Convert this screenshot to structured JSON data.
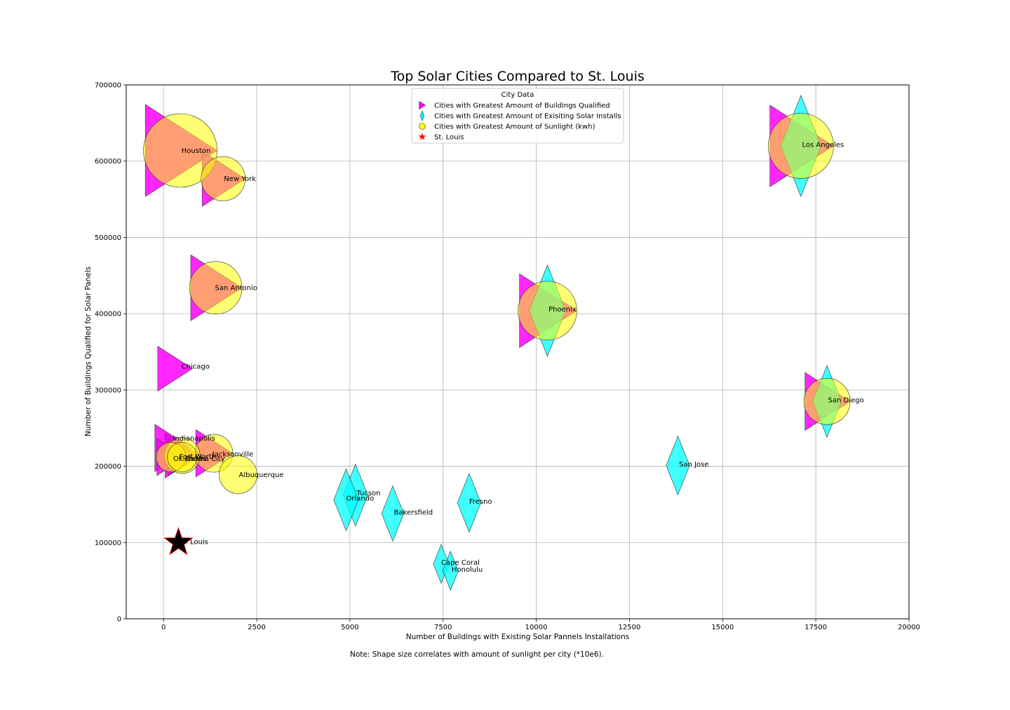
{
  "chart_data": {
    "type": "scatter",
    "title": "Top Solar Cities Compared to St. Louis",
    "xlabel": "Number of Buildings with Existing Solar Pannels Installations",
    "ylabel": "Number of Buildings Qualified for Solar Panels",
    "note": "Note: Shape size correlates with amount of sunlight per city (*10e6).",
    "xlim": [
      -1000,
      20000
    ],
    "ylim": [
      0,
      700000
    ],
    "xticks": [
      0,
      2500,
      5000,
      7500,
      10000,
      12500,
      15000,
      17500,
      20000
    ],
    "yticks": [
      0,
      100000,
      200000,
      300000,
      400000,
      500000,
      600000,
      700000
    ],
    "grid": true,
    "legend": {
      "title": "City Data",
      "placement": "upper-center",
      "entries": [
        {
          "label": "Cities with Greatest Amount of Buildings Qualified",
          "marker": "triangle-right",
          "color": "#ff00ff"
        },
        {
          "label": "Cities with Greatest Amount of Exisiting Solar Installs",
          "marker": "diamond",
          "color": "#00ffff"
        },
        {
          "label": "Cities with Greatest Amount of Sunlight (kwh)",
          "marker": "circle",
          "color": "#ffff00"
        },
        {
          "label": "St. Louis",
          "marker": "star",
          "color": "#cc0000"
        }
      ]
    },
    "colors": {
      "qualified": "#ff00ff",
      "installs": "#00ffff",
      "sunlight": "#ffff00",
      "stlouis_fill": "#000000",
      "stlouis_edge": "#ff0000"
    },
    "series": [
      {
        "name": "Cities with Greatest Amount of Buildings Qualified",
        "marker": "triangle-right",
        "points": [
          {
            "city": "Houston",
            "x": 450,
            "y": 614000,
            "size": 3.5
          },
          {
            "city": "New York",
            "x": 1600,
            "y": 577000,
            "size": 2.1
          },
          {
            "city": "San Antonio",
            "x": 1400,
            "y": 434000,
            "size": 2.5
          },
          {
            "city": "Chicago",
            "x": 300,
            "y": 328000,
            "size": 1.7
          },
          {
            "city": "Indianapolis",
            "x": 250,
            "y": 224000,
            "size": 1.8
          },
          {
            "city": "Fort Worth",
            "x": 500,
            "y": 214000,
            "size": 1.7
          },
          {
            "city": "Jacksonville",
            "x": 1350,
            "y": 217000,
            "size": 1.8
          },
          {
            "city": "Oklahoma City",
            "x": 200,
            "y": 212000,
            "size": 1.4
          },
          {
            "city": "Dallas",
            "x": 500,
            "y": 212000,
            "size": 1.4
          },
          {
            "city": "Los Angeles",
            "x": 17100,
            "y": 620000,
            "size": 3.1
          },
          {
            "city": "Phoenix",
            "x": 10300,
            "y": 404000,
            "size": 2.8
          },
          {
            "city": "San Diego",
            "x": 17800,
            "y": 285000,
            "size": 2.2
          }
        ]
      },
      {
        "name": "Cities with Greatest Amount of Exisiting Solar Installs",
        "marker": "diamond",
        "points": [
          {
            "city": "Los Angeles",
            "x": 17100,
            "y": 620000,
            "size": 3.1
          },
          {
            "city": "Phoenix",
            "x": 10300,
            "y": 404000,
            "size": 2.8
          },
          {
            "city": "San Diego",
            "x": 17800,
            "y": 285000,
            "size": 2.2
          },
          {
            "city": "San Jose",
            "x": 13800,
            "y": 201000,
            "size": 1.8
          },
          {
            "city": "Tucson",
            "x": 5150,
            "y": 162000,
            "size": 1.9
          },
          {
            "city": "Orlando",
            "x": 4900,
            "y": 156000,
            "size": 1.9
          },
          {
            "city": "Bakersfield",
            "x": 6150,
            "y": 138000,
            "size": 1.7
          },
          {
            "city": "Fresno",
            "x": 8200,
            "y": 152000,
            "size": 1.8
          },
          {
            "city": "Cape Coral",
            "x": 7450,
            "y": 72000,
            "size": 1.2
          },
          {
            "city": "Honolulu",
            "x": 7700,
            "y": 63000,
            "size": 1.2
          }
        ]
      },
      {
        "name": "Cities with Greatest Amount of Sunlight (kwh)",
        "marker": "circle",
        "points": [
          {
            "city": "Houston",
            "x": 450,
            "y": 614000,
            "size": 3.5
          },
          {
            "city": "New York",
            "x": 1600,
            "y": 577000,
            "size": 2.1
          },
          {
            "city": "San Antonio",
            "x": 1400,
            "y": 434000,
            "size": 2.5
          },
          {
            "city": "Los Angeles",
            "x": 17100,
            "y": 620000,
            "size": 3.1
          },
          {
            "city": "Phoenix",
            "x": 10300,
            "y": 404000,
            "size": 2.8
          },
          {
            "city": "San Diego",
            "x": 17800,
            "y": 285000,
            "size": 2.2
          },
          {
            "city": "Jacksonville",
            "x": 1350,
            "y": 217000,
            "size": 1.8
          },
          {
            "city": "Fort Worth",
            "x": 500,
            "y": 214000,
            "size": 1.7
          },
          {
            "city": "Oklahoma City",
            "x": 200,
            "y": 212000,
            "size": 1.4
          },
          {
            "city": "Dallas",
            "x": 500,
            "y": 212000,
            "size": 1.4
          },
          {
            "city": "Albuquerque",
            "x": 2000,
            "y": 189000,
            "size": 1.8
          }
        ]
      },
      {
        "name": "St. Louis",
        "marker": "star",
        "points": [
          {
            "city": "St. Louis",
            "x": 400,
            "y": 100000,
            "size": 1.0
          }
        ]
      }
    ],
    "labels": [
      {
        "text": "Houston",
        "x": 480,
        "y": 614000
      },
      {
        "text": "New York",
        "x": 1620,
        "y": 577000
      },
      {
        "text": "San Antonio",
        "x": 1380,
        "y": 434000
      },
      {
        "text": "Chicago",
        "x": 480,
        "y": 331000
      },
      {
        "text": "Indianapolis",
        "x": 250,
        "y": 237000
      },
      {
        "text": "Fort Worth",
        "x": 420,
        "y": 213000
      },
      {
        "text": "Jacksonville",
        "x": 1310,
        "y": 216000
      },
      {
        "text": "Oklahoma City",
        "x": 260,
        "y": 210000
      },
      {
        "text": "Dallas",
        "x": 580,
        "y": 210000
      },
      {
        "text": "Albuquerque",
        "x": 2020,
        "y": 189000
      },
      {
        "text": "Orlando",
        "x": 4900,
        "y": 158000
      },
      {
        "text": "Tucson",
        "x": 5180,
        "y": 165000
      },
      {
        "text": "Bakersfield",
        "x": 6180,
        "y": 140000
      },
      {
        "text": "Fresno",
        "x": 8200,
        "y": 154000
      },
      {
        "text": "Cape Coral",
        "x": 7450,
        "y": 74000
      },
      {
        "text": "Honolulu",
        "x": 7730,
        "y": 65000
      },
      {
        "text": "San Jose",
        "x": 13830,
        "y": 203000
      },
      {
        "text": "Los Angeles",
        "x": 17130,
        "y": 622000
      },
      {
        "text": "Phoenix",
        "x": 10330,
        "y": 406000
      },
      {
        "text": "San Diego",
        "x": 17830,
        "y": 287000
      },
      {
        "text": "St. Louis",
        "x": 400,
        "y": 101000
      }
    ]
  }
}
